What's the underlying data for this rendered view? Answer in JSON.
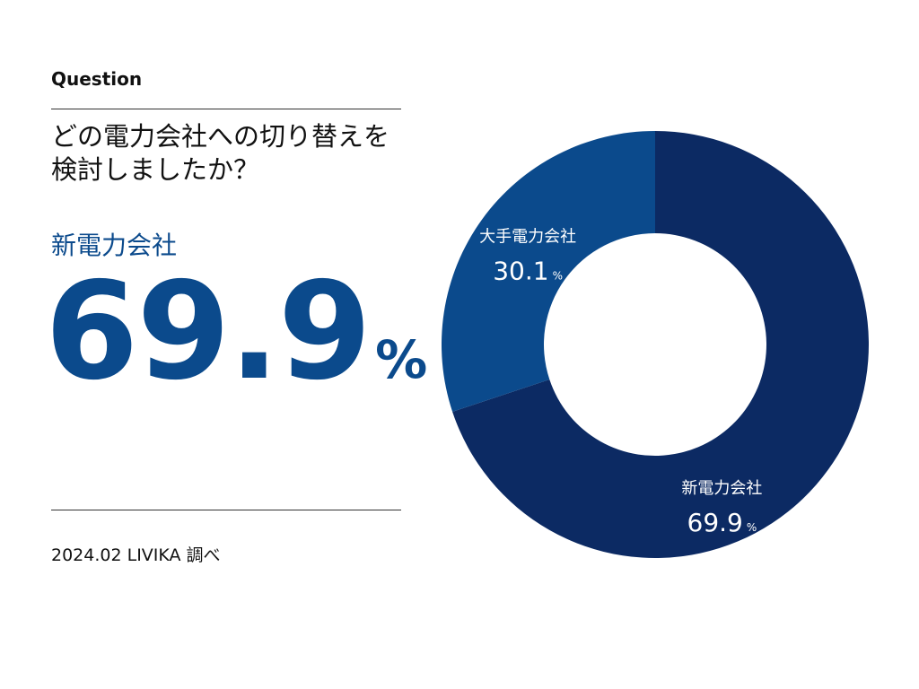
{
  "header": {
    "label": "Question",
    "question_line1": "どの電力会社への切り替えを",
    "question_line2": "検討しましたか？"
  },
  "highlight": {
    "label": "新電力会社",
    "value": "69.9",
    "unit": "%"
  },
  "footer": {
    "source": "2024.02 LIVIKA 調べ"
  },
  "colors": {
    "primary": "#0b4a8c",
    "slice_new": "#0c2a63",
    "slice_major": "#0b4a8c",
    "text": "#111111"
  },
  "chart_data": {
    "type": "pie",
    "donut": true,
    "title": "",
    "slices": [
      {
        "name": "新電力会社",
        "value": 69.9,
        "value_label": "69.9",
        "unit": "%",
        "color": "#0c2a63"
      },
      {
        "name": "大手電力会社",
        "value": 30.1,
        "value_label": "30.1",
        "unit": "%",
        "color": "#0b4a8c"
      }
    ]
  }
}
